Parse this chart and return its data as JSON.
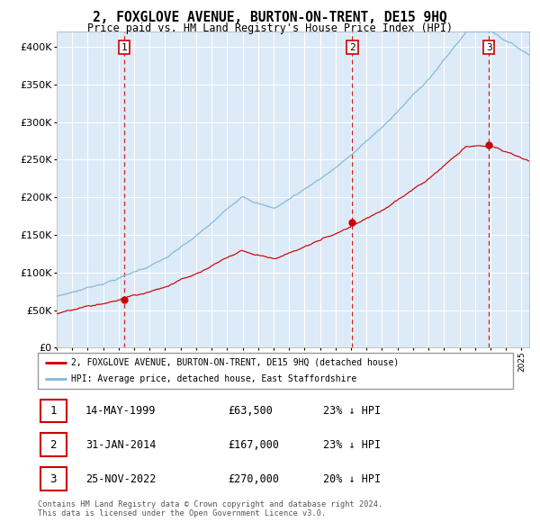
{
  "title": "2, FOXGLOVE AVENUE, BURTON-ON-TRENT, DE15 9HQ",
  "subtitle": "Price paid vs. HM Land Registry's House Price Index (HPI)",
  "hpi_label": "HPI: Average price, detached house, East Staffordshire",
  "price_label": "2, FOXGLOVE AVENUE, BURTON-ON-TRENT, DE15 9HQ (detached house)",
  "hpi_color": "#7db9d8",
  "price_color": "#cc0000",
  "dot_color": "#cc0000",
  "vline_color": "#cc0000",
  "bg_color": "#ddeaf7",
  "grid_color": "#ffffff",
  "sales": [
    {
      "num": 1,
      "date_label": "14-MAY-1999",
      "date_x": 1999.37,
      "price": 63500,
      "hpi_pct": "23%"
    },
    {
      "num": 2,
      "date_label": "31-JAN-2014",
      "date_x": 2014.08,
      "price": 167000,
      "hpi_pct": "23%"
    },
    {
      "num": 3,
      "date_label": "25-NOV-2022",
      "date_x": 2022.9,
      "price": 270000,
      "hpi_pct": "20%"
    }
  ],
  "xmin": 1995.0,
  "xmax": 2025.5,
  "ymin": 0,
  "ymax": 420000,
  "yticks": [
    0,
    50000,
    100000,
    150000,
    200000,
    250000,
    300000,
    350000,
    400000
  ],
  "footnote1": "Contains HM Land Registry data © Crown copyright and database right 2024.",
  "footnote2": "This data is licensed under the Open Government Licence v3.0."
}
